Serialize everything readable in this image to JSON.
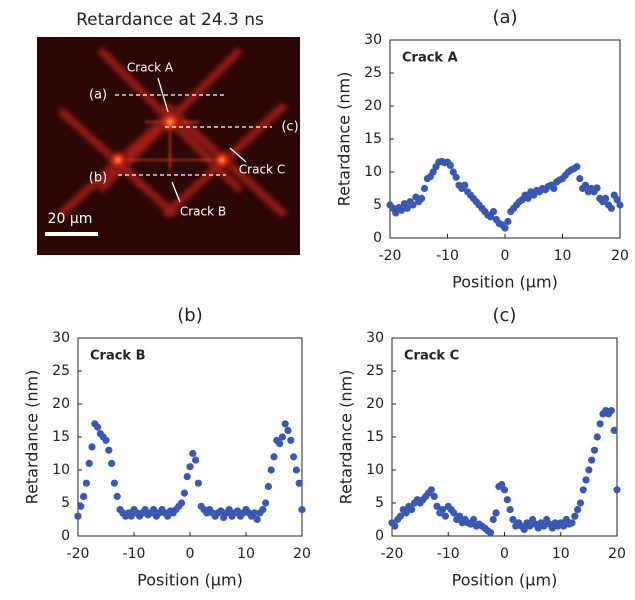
{
  "image": {
    "title": "Retardance at 24.3 ns",
    "line_labels": [
      "(a)",
      "(c)",
      "(b)"
    ],
    "crack_labels": [
      "Crack A",
      "Crack C",
      "Crack B"
    ],
    "scale_bar": "20 μm"
  },
  "chart_data": [
    {
      "type": "scatter",
      "title": "(a)",
      "annotation": "Crack A",
      "xlabel": "Position (μm)",
      "ylabel": "Retardance (nm)",
      "color": "#3a58b0",
      "xlim": [
        -20,
        20
      ],
      "ylim": [
        0,
        30
      ],
      "xticks": [
        -20,
        -10,
        0,
        10,
        20
      ],
      "yticks": [
        0,
        5,
        10,
        15,
        20,
        25,
        30
      ],
      "grid": false,
      "x": [
        -20,
        -19.5,
        -19,
        -18.5,
        -18,
        -17.5,
        -17,
        -16.5,
        -16,
        -15.5,
        -15,
        -14.5,
        -14,
        -13.5,
        -13,
        -12.5,
        -12,
        -11.5,
        -11,
        -10.5,
        -10,
        -9.5,
        -9,
        -8.5,
        -8,
        -7.5,
        -7,
        -6.5,
        -6,
        -5.5,
        -5,
        -4.5,
        -4,
        -3.5,
        -3,
        -2.5,
        -2,
        -1.5,
        -1,
        -0.5,
        0,
        0.5,
        1,
        1.5,
        2,
        2.5,
        3,
        3.5,
        4,
        4.5,
        5,
        5.5,
        6,
        6.5,
        7,
        7.5,
        8,
        8.5,
        9,
        9.5,
        10,
        10.5,
        11,
        11.5,
        12,
        12.5,
        13,
        13.5,
        14,
        14.5,
        15,
        15.5,
        16,
        16.5,
        17,
        17.5,
        18,
        18.5,
        19,
        19.5,
        20
      ],
      "values": [
        5,
        4.5,
        3.8,
        4.6,
        4.2,
        5.2,
        4.5,
        5.5,
        5,
        6.2,
        5.5,
        6,
        7.5,
        9,
        9.3,
        10,
        10.8,
        11.5,
        11.6,
        11.4,
        11.5,
        11,
        10,
        9.2,
        8,
        7.5,
        8,
        7,
        6.5,
        6,
        5.5,
        5,
        4.5,
        4,
        3.5,
        3.2,
        4,
        2.8,
        2.2,
        2,
        1.5,
        2.5,
        4,
        4.5,
        5,
        5.5,
        5.8,
        6.5,
        6,
        7,
        6.5,
        7.2,
        7,
        7.5,
        7.3,
        7.8,
        8,
        7.5,
        8.5,
        8.8,
        9,
        9.5,
        10,
        10.3,
        10.5,
        10.8,
        9,
        7.5,
        8,
        7,
        7.5,
        7,
        7.6,
        6,
        5.5,
        6,
        5,
        4.5,
        6.5,
        5.8,
        5
      ]
    },
    {
      "type": "scatter",
      "title": "(b)",
      "annotation": "Crack B",
      "xlabel": "Position (μm)",
      "ylabel": "Retardance (nm)",
      "color": "#3a58b0",
      "xlim": [
        -20,
        20
      ],
      "ylim": [
        0,
        30
      ],
      "xticks": [
        -20,
        -10,
        0,
        10,
        20
      ],
      "yticks": [
        0,
        5,
        10,
        15,
        20,
        25,
        30
      ],
      "grid": false,
      "x": [
        -20,
        -19.5,
        -19,
        -18.5,
        -18,
        -17.5,
        -17,
        -16.5,
        -16,
        -15.5,
        -15,
        -14.5,
        -14,
        -13.5,
        -13,
        -12.5,
        -12,
        -11.5,
        -11,
        -10.5,
        -10,
        -9.5,
        -9,
        -8.5,
        -8,
        -7.5,
        -7,
        -6.5,
        -6,
        -5.5,
        -5,
        -4.5,
        -4,
        -3.5,
        -3,
        -2.5,
        -2,
        -1.5,
        -1,
        -0.5,
        0,
        0.5,
        1,
        1.5,
        2,
        2.5,
        3,
        3.5,
        4,
        4.5,
        5,
        5.5,
        6,
        6.5,
        7,
        7.5,
        8,
        8.5,
        9,
        9.5,
        10,
        10.5,
        11,
        11.5,
        12,
        12.5,
        13,
        13.5,
        14,
        14.5,
        15,
        15.5,
        16,
        16.5,
        17,
        17.5,
        18,
        18.5,
        19,
        19.5,
        20
      ],
      "values": [
        3,
        4.5,
        6,
        8,
        11,
        13.5,
        17,
        16.5,
        15.5,
        15,
        14.5,
        13,
        11,
        8,
        6,
        4,
        3.5,
        3,
        3.5,
        3,
        4,
        3.5,
        3,
        3.5,
        4,
        3.2,
        3.5,
        4,
        3,
        3.5,
        4,
        3.5,
        3,
        3.8,
        3.5,
        4,
        4.5,
        5,
        6.5,
        9,
        10.5,
        12.5,
        11.5,
        8,
        4.5,
        4,
        3.5,
        4,
        3.5,
        3,
        3.5,
        3.8,
        2.8,
        3.5,
        4,
        3,
        3.5,
        3.8,
        3,
        3.5,
        4,
        3.5,
        3,
        3.5,
        2.5,
        3.5,
        4,
        5,
        7.5,
        10,
        12,
        14.5,
        14,
        15,
        17,
        16,
        14.5,
        12,
        10,
        8,
        4
      ]
    },
    {
      "type": "scatter",
      "title": "(c)",
      "annotation": "Crack C",
      "xlabel": "Position (μm)",
      "ylabel": "Retardance (nm)",
      "color": "#3a58b0",
      "xlim": [
        -20,
        20
      ],
      "ylim": [
        0,
        30
      ],
      "xticks": [
        -20,
        -10,
        0,
        10,
        20
      ],
      "yticks": [
        0,
        5,
        10,
        15,
        20,
        25,
        30
      ],
      "grid": false,
      "x": [
        -20,
        -19.5,
        -19,
        -18.5,
        -18,
        -17.5,
        -17,
        -16.5,
        -16,
        -15.5,
        -15,
        -14.5,
        -14,
        -13.5,
        -13,
        -12.5,
        -12,
        -11.5,
        -11,
        -10.5,
        -10,
        -9.5,
        -9,
        -8.5,
        -8,
        -7.5,
        -7,
        -6.5,
        -6,
        -5.5,
        -5,
        -4.5,
        -4,
        -3.5,
        -3,
        -2.5,
        -2,
        -1.5,
        -1,
        -0.5,
        0,
        0.5,
        1,
        1.5,
        2,
        2.5,
        3,
        3.5,
        4,
        4.5,
        5,
        5.5,
        6,
        6.5,
        7,
        7.5,
        8,
        8.5,
        9,
        9.5,
        10,
        10.5,
        11,
        11.5,
        12,
        12.5,
        13,
        13.5,
        14,
        14.5,
        15,
        15.5,
        16,
        16.5,
        17,
        17.5,
        18,
        18.5,
        19,
        19.5,
        20
      ],
      "values": [
        2,
        1.5,
        2.5,
        3,
        4,
        3.5,
        4.5,
        4,
        5,
        5.5,
        5,
        5.5,
        6,
        6.5,
        7,
        6,
        4.5,
        3.5,
        4,
        3,
        4.5,
        4,
        3.5,
        2.5,
        3,
        2,
        2.5,
        2,
        1.8,
        2.5,
        1.5,
        1.8,
        1.5,
        1.2,
        0.8,
        0.5,
        2.5,
        3.5,
        7.5,
        7.8,
        7,
        5.5,
        4,
        2.5,
        1.5,
        2,
        1.5,
        1,
        2,
        1.5,
        2.5,
        1.8,
        1.2,
        2,
        1.5,
        2.5,
        1.8,
        1.2,
        2,
        1.5,
        2,
        1.5,
        2.5,
        1.8,
        2,
        3,
        4,
        5,
        7,
        8.5,
        10,
        11.5,
        13,
        15,
        17,
        18.5,
        19,
        18.5,
        19,
        16,
        7
      ]
    }
  ]
}
